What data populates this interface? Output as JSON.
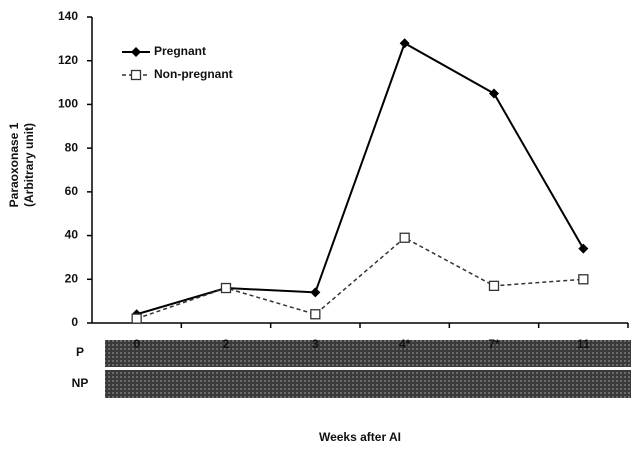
{
  "chart_data": {
    "type": "line",
    "y_label": [
      "Paraoxonase 1",
      "(Arbitrary unit)"
    ],
    "x_label": "Weeks after AI",
    "categories": [
      "0",
      "2",
      "3",
      "4*",
      "7*",
      "11"
    ],
    "series": [
      {
        "name": "Pregnant",
        "color": "#000000",
        "values": [
          4,
          16,
          14,
          128,
          105,
          34
        ]
      },
      {
        "name": "Non-pregnant",
        "color": "#333333",
        "values": [
          2,
          16,
          4,
          39,
          17,
          20
        ]
      }
    ],
    "ylim": [
      0,
      140
    ],
    "yticks": [
      0,
      20,
      40,
      60,
      80,
      100,
      120,
      140
    ],
    "legend": "upper-left",
    "blot_labels": [
      "P",
      "NP"
    ]
  }
}
